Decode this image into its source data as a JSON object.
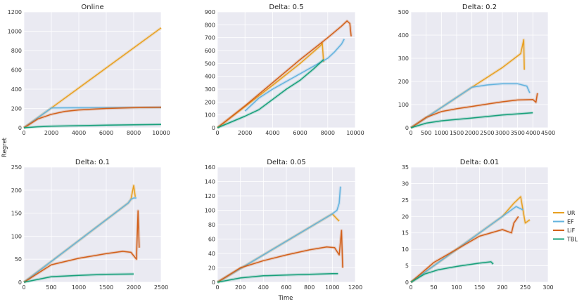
{
  "figure": {
    "ylabel": "Regret",
    "xlabel": "Time",
    "legend": [
      {
        "name": "UR",
        "color": "#E8A020"
      },
      {
        "name": "EF",
        "color": "#63B3DE"
      },
      {
        "name": "LiF",
        "color": "#D2601A"
      },
      {
        "name": "TBL",
        "color": "#17A07A"
      }
    ]
  },
  "chart_data": [
    {
      "type": "line",
      "title": "Online",
      "xlim": [
        0,
        10000
      ],
      "ylim": [
        0,
        1200
      ],
      "xticks": [
        0,
        2000,
        4000,
        6000,
        8000,
        10000
      ],
      "yticks": [
        0,
        200,
        400,
        600,
        800,
        1000,
        1200
      ],
      "series": [
        {
          "name": "UR",
          "x": [
            0,
            2000,
            10000
          ],
          "y": [
            0,
            205,
            1035
          ]
        },
        {
          "name": "EF",
          "x": [
            0,
            2000,
            4000,
            6000,
            8000,
            10000
          ],
          "y": [
            0,
            205,
            207,
            208,
            209,
            210
          ]
        },
        {
          "name": "LiF",
          "x": [
            0,
            1000,
            2000,
            3000,
            4000,
            6000,
            8000,
            10000
          ],
          "y": [
            0,
            90,
            140,
            170,
            185,
            200,
            208,
            213
          ]
        },
        {
          "name": "TBL",
          "x": [
            0,
            1000,
            2000,
            4000,
            6000,
            8000,
            10000
          ],
          "y": [
            0,
            10,
            16,
            22,
            27,
            31,
            35
          ]
        }
      ]
    },
    {
      "type": "line",
      "title": "Delta: 0.5",
      "xlim": [
        0,
        10000
      ],
      "ylim": [
        0,
        900
      ],
      "xticks": [
        0,
        2000,
        4000,
        6000,
        8000,
        10000
      ],
      "yticks": [
        0,
        100,
        200,
        300,
        400,
        500,
        600,
        700,
        800,
        900
      ],
      "series": [
        {
          "name": "UR",
          "x": [
            0,
            2000,
            4000,
            6000,
            7500,
            7600,
            7700
          ],
          "y": [
            0,
            165,
            330,
            500,
            640,
            660,
            510
          ]
        },
        {
          "name": "EF",
          "x": [
            2000,
            3000,
            4000,
            5000,
            6000,
            7000,
            8000,
            8500,
            9000,
            9200
          ],
          "y": [
            130,
            230,
            300,
            360,
            420,
            480,
            540,
            590,
            650,
            690
          ]
        },
        {
          "name": "LiF",
          "x": [
            0,
            2000,
            4000,
            6000,
            8000,
            9000,
            9400,
            9600,
            9700
          ],
          "y": [
            0,
            170,
            350,
            530,
            700,
            790,
            830,
            810,
            710
          ]
        },
        {
          "name": "TBL",
          "x": [
            0,
            2000,
            3000,
            4000,
            5000,
            6000,
            7000,
            7700
          ],
          "y": [
            0,
            90,
            140,
            220,
            300,
            370,
            460,
            530
          ]
        }
      ]
    },
    {
      "type": "line",
      "title": "Delta: 0.2",
      "xlim": [
        0,
        4500
      ],
      "ylim": [
        0,
        500
      ],
      "xticks": [
        0,
        500,
        1000,
        1500,
        2000,
        2500,
        3000,
        3500,
        4000,
        4500
      ],
      "yticks": [
        0,
        100,
        200,
        300,
        400,
        500
      ],
      "series": [
        {
          "name": "UR",
          "x": [
            0,
            2000,
            3000,
            3600,
            3650,
            3700,
            3720
          ],
          "y": [
            0,
            175,
            260,
            320,
            350,
            380,
            250
          ]
        },
        {
          "name": "EF",
          "x": [
            0,
            2000,
            2500,
            3000,
            3500,
            3800,
            3900
          ],
          "y": [
            0,
            175,
            185,
            190,
            190,
            180,
            150
          ]
        },
        {
          "name": "LiF",
          "x": [
            0,
            500,
            1000,
            1500,
            2000,
            2500,
            3000,
            3500,
            4000,
            4100,
            4150
          ],
          "y": [
            0,
            45,
            70,
            82,
            92,
            102,
            112,
            120,
            122,
            110,
            150
          ]
        },
        {
          "name": "TBL",
          "x": [
            0,
            500,
            1000,
            2000,
            3000,
            4000
          ],
          "y": [
            0,
            20,
            30,
            42,
            55,
            65
          ]
        }
      ]
    },
    {
      "type": "line",
      "title": "Delta: 0.1",
      "xlim": [
        0,
        2500
      ],
      "ylim": [
        0,
        250
      ],
      "xticks": [
        0,
        500,
        1000,
        1500,
        2000,
        2500
      ],
      "yticks": [
        0,
        50,
        100,
        150,
        200,
        250
      ],
      "series": [
        {
          "name": "UR",
          "x": [
            0,
            1900,
            1950,
            2000,
            2030
          ],
          "y": [
            0,
            172,
            180,
            210,
            185
          ]
        },
        {
          "name": "EF",
          "x": [
            0,
            1900,
            1950,
            2000,
            2050
          ],
          "y": [
            0,
            172,
            180,
            183,
            183
          ]
        },
        {
          "name": "LiF",
          "x": [
            0,
            500,
            1000,
            1500,
            1800,
            1950,
            2050,
            2080,
            2100
          ],
          "y": [
            0,
            38,
            52,
            62,
            67,
            65,
            50,
            155,
            75
          ]
        },
        {
          "name": "TBL",
          "x": [
            0,
            500,
            1000,
            1500,
            2000
          ],
          "y": [
            0,
            12,
            15,
            17,
            18
          ]
        }
      ]
    },
    {
      "type": "line",
      "title": "Delta: 0.05",
      "xlim": [
        0,
        1200
      ],
      "ylim": [
        0,
        160
      ],
      "xticks": [
        0,
        200,
        400,
        600,
        800,
        1000,
        1200
      ],
      "yticks": [
        0,
        20,
        40,
        60,
        80,
        100,
        120,
        140,
        160
      ],
      "series": [
        {
          "name": "UR",
          "x": [
            0,
            1000,
            1040,
            1060
          ],
          "y": [
            0,
            95,
            88,
            85
          ]
        },
        {
          "name": "EF",
          "x": [
            0,
            1000,
            1040,
            1060,
            1070
          ],
          "y": [
            0,
            95,
            100,
            110,
            133
          ]
        },
        {
          "name": "LiF",
          "x": [
            0,
            200,
            400,
            600,
            800,
            950,
            1020,
            1060,
            1080,
            1090
          ],
          "y": [
            0,
            20,
            30,
            38,
            45,
            49,
            48,
            38,
            72,
            20
          ]
        },
        {
          "name": "TBL",
          "x": [
            0,
            200,
            400,
            600,
            800,
            1000,
            1050
          ],
          "y": [
            0,
            6,
            9,
            10,
            11,
            12,
            12
          ]
        }
      ]
    },
    {
      "type": "line",
      "title": "Delta: 0.01",
      "xlim": [
        0,
        300
      ],
      "ylim": [
        0,
        35
      ],
      "xticks": [
        0,
        50,
        100,
        150,
        200,
        250,
        300
      ],
      "yticks": [
        0,
        5,
        10,
        15,
        20,
        25,
        30,
        35
      ],
      "series": [
        {
          "name": "UR",
          "x": [
            0,
            200,
            225,
            240,
            250,
            260
          ],
          "y": [
            0,
            20,
            24,
            26,
            18,
            19
          ]
        },
        {
          "name": "EF",
          "x": [
            0,
            200,
            230,
            245
          ],
          "y": [
            0,
            20,
            23,
            22
          ]
        },
        {
          "name": "LiF",
          "x": [
            0,
            50,
            100,
            150,
            200,
            220,
            225,
            235
          ],
          "y": [
            0,
            6,
            10,
            14,
            16,
            15,
            18,
            20
          ]
        },
        {
          "name": "TBL",
          "x": [
            0,
            30,
            60,
            100,
            150,
            175,
            180
          ],
          "y": [
            0,
            2.5,
            3.8,
            4.8,
            5.8,
            6.2,
            5.5
          ]
        }
      ]
    }
  ]
}
